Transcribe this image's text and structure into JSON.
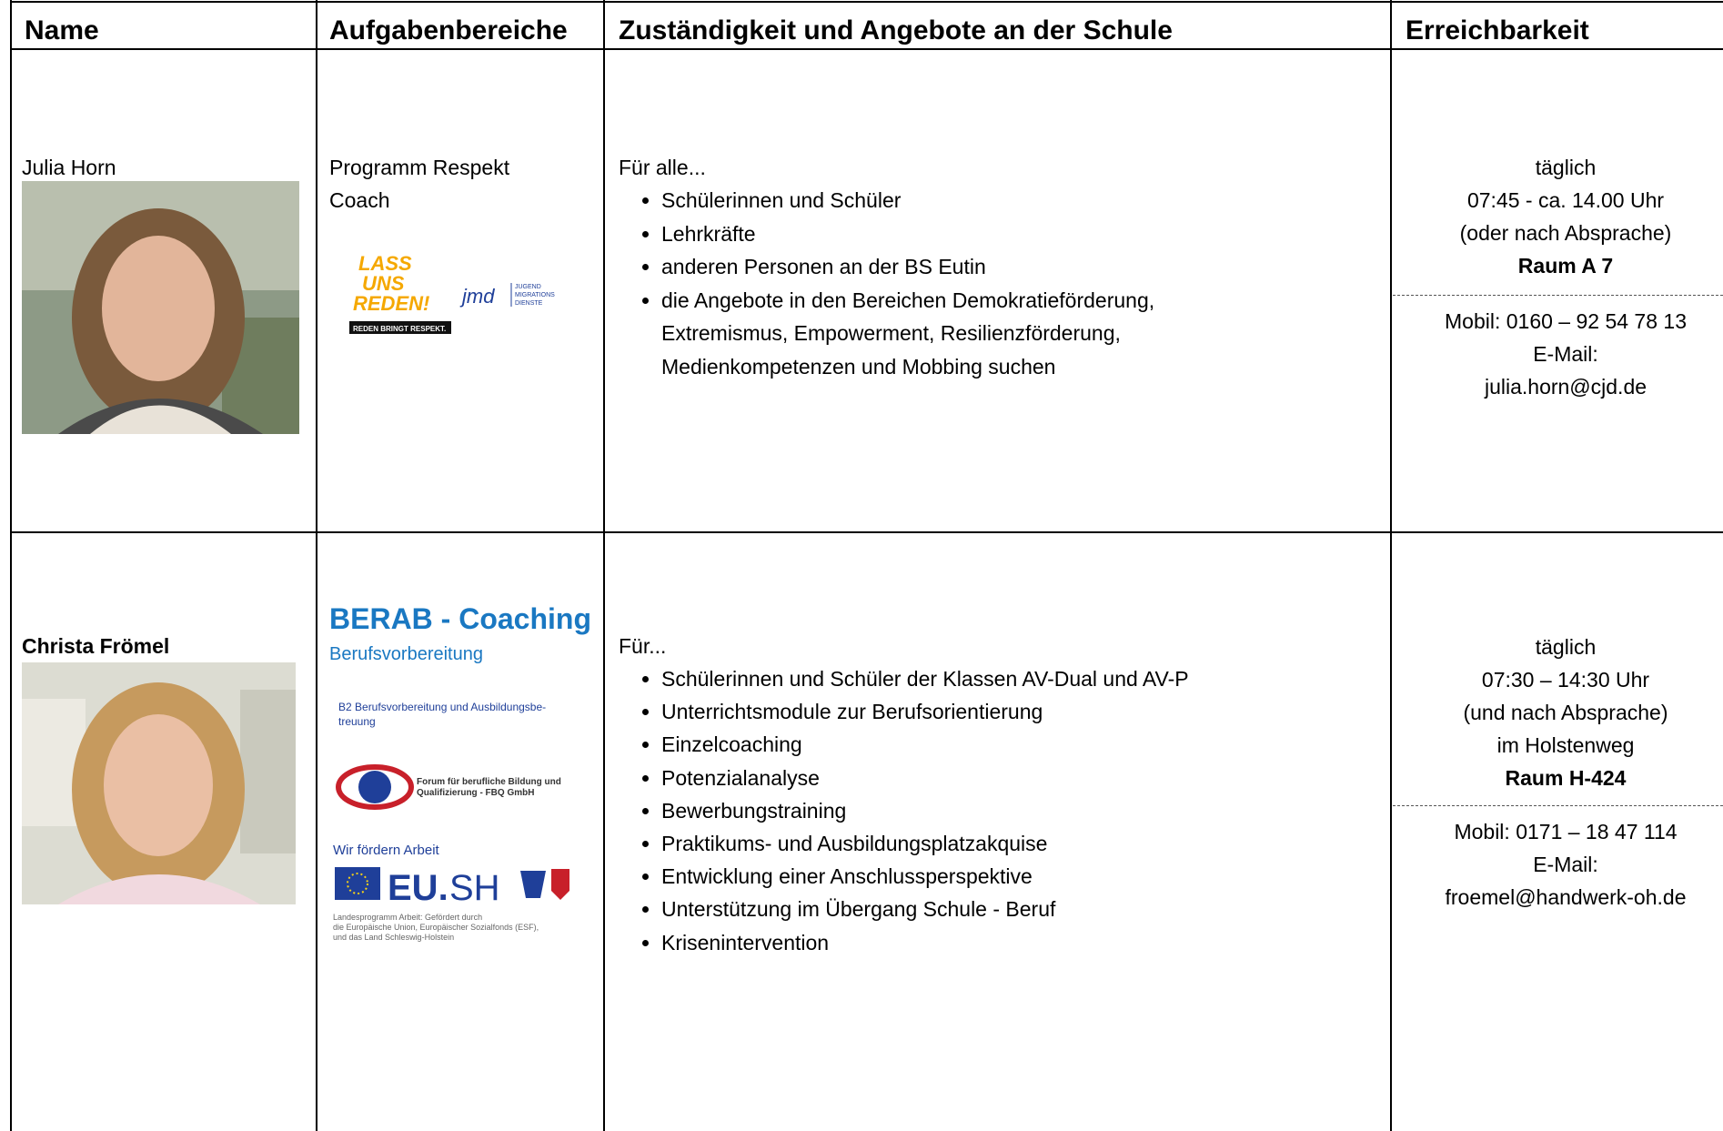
{
  "table": {
    "headers": [
      "Name",
      "Aufgabenbereiche",
      "Zuständigkeit und Angebote an der Schule",
      "Erreichbarkeit"
    ],
    "rows": [
      {
        "name": "Julia Horn",
        "tasks": "Programm Respekt Coach",
        "logos": {
          "lass": [
            "LASS",
            "UNS",
            "REDEN!"
          ],
          "lass_claim": "REDEN BRINGT RESPEKT.",
          "jmd": "jmd",
          "jmd_text": [
            "JUGEND",
            "MIGRATIONS",
            "DIENSTE"
          ]
        },
        "intro": "Für alle...",
        "items": [
          "Schülerinnen und Schüler",
          "Lehrkräfte",
          "anderen Personen an der BS Eutin",
          "die Angebote in den Bereichen Demokratieförderung, Extremismus, Empowerment, Resilienzförderung, Medienkompetenzen und Mobbing suchen"
        ],
        "hours": [
          "täglich",
          "07:45 - ca. 14.00 Uhr",
          "(oder nach Absprache)"
        ],
        "room": "Raum A 7",
        "contact": [
          "Mobil: 0160 – 92 54 78 13",
          "E-Mail:",
          "julia.horn@cjd.de"
        ]
      },
      {
        "name": "Christa Frömel",
        "logos": {
          "berab_title": "BERAB - Coaching",
          "berab_subtitle": "Berufsvorbereitung",
          "b2": [
            "B2 Berufsvorbereitung und Ausbildungsbe-",
            "treuung"
          ],
          "fbq": [
            "Forum für berufliche Bildung und",
            "Qualifizierung - FBQ GmbH"
          ],
          "eu_claim": "Wir fördern Arbeit",
          "eu_name": "EU.",
          "eu_region": "SH",
          "eu_note": [
            "Landesprogramm Arbeit: Gefördert durch",
            "die Europäische Union, Europäischer Sozialfonds (ESF),",
            "und das Land Schleswig-Holstein"
          ]
        },
        "intro": "Für...",
        "items": [
          "Schülerinnen und Schüler der Klassen AV-Dual und AV-P",
          "Unterrichtsmodule zur Berufsorientierung",
          "Einzelcoaching",
          "Potenzialanalyse",
          "Bewerbungstraining",
          "Praktikums- und Ausbildungsplatzakquise",
          "Entwicklung einer Anschlussperspektive",
          "Unterstützung im Übergang Schule - Beruf",
          "Krisenintervention"
        ],
        "hours": [
          "täglich",
          "07:30 – 14:30 Uhr",
          "(und nach Absprache)",
          "im Holstenweg"
        ],
        "room": "Raum H-424",
        "contact": [
          "Mobil: 0171 – 18 47 114",
          "E-Mail:",
          "froemel@handwerk-oh.de"
        ]
      }
    ]
  }
}
